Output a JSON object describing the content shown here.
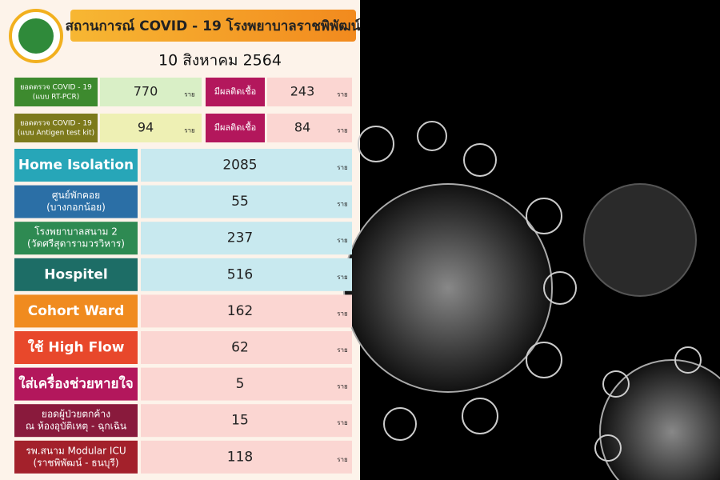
{
  "header": {
    "title": "สถานการณ์ COVID - 19 โรงพยาบาลราชพิพัฒน์",
    "date": "10 สิงหาคม 2564"
  },
  "tests": [
    {
      "label": [
        "ยอดตรวจ COVID - 19",
        "(แบบ RT-PCR)"
      ],
      "value": 770,
      "unit": "ราย",
      "label_color": "#3d8a2e",
      "value_color": "#d9efc6",
      "positive_label": "มีผลติดเชื้อ",
      "positive_value": 243,
      "positive_unit": "ราย"
    },
    {
      "label": [
        "ยอดตรวจ COVID - 19",
        "(แบบ Antigen test kit)"
      ],
      "value": 94,
      "unit": "ราย",
      "label_color": "#7d7a1c",
      "value_color": "#eef0b4",
      "positive_label": "มีผลติดเชื้อ",
      "positive_value": 84,
      "positive_unit": "ราย"
    }
  ],
  "rows": [
    {
      "label": [
        "Home Isolation"
      ],
      "value": 2085,
      "unit": "ราย",
      "color": "#27a6b8",
      "value_color": "#c8e9ef"
    },
    {
      "label": [
        "ศูนย์พักคอย",
        "(บางกอกน้อย)"
      ],
      "value": 55,
      "unit": "ราย",
      "color": "#2b6fa6",
      "value_color": "#c8e9ef"
    },
    {
      "label": [
        "โรงพยาบาลสนาม 2",
        "(วัดศรีสุดารามวรวิหาร)"
      ],
      "value": 237,
      "unit": "ราย",
      "color": "#2e8a52",
      "value_color": "#c8e9ef"
    },
    {
      "label": [
        "Hospitel"
      ],
      "value": 516,
      "unit": "ราย",
      "color": "#1d6d66",
      "value_color": "#c8e9ef"
    },
    {
      "label": [
        "Cohort Ward"
      ],
      "value": 162,
      "unit": "ราย",
      "color": "#f08b1f",
      "value_color": "#fbd6d2"
    },
    {
      "label": [
        "ใช้ High Flow"
      ],
      "value": 62,
      "unit": "ราย",
      "color": "#e8482b",
      "value_color": "#fbd6d2"
    },
    {
      "label": [
        "ใส่เครื่องช่วยหายใจ"
      ],
      "value": 5,
      "unit": "ราย",
      "color": "#b3175c",
      "value_color": "#fbd6d2"
    },
    {
      "label": [
        "ยอดผู้ป่วยตกค้าง",
        "ณ ห้องอุบัติเหตุ - ฉุกเฉิน"
      ],
      "value": 15,
      "unit": "ราย",
      "color": "#891a3c",
      "value_color": "#fbd6d2"
    },
    {
      "label": [
        "รพ.สนาม Modular ICU",
        "(ราชพิพัฒน์ - ธนบุรี)"
      ],
      "value": 118,
      "unit": "ราย",
      "color": "#a3212b",
      "value_color": "#fbd6d2"
    }
  ]
}
